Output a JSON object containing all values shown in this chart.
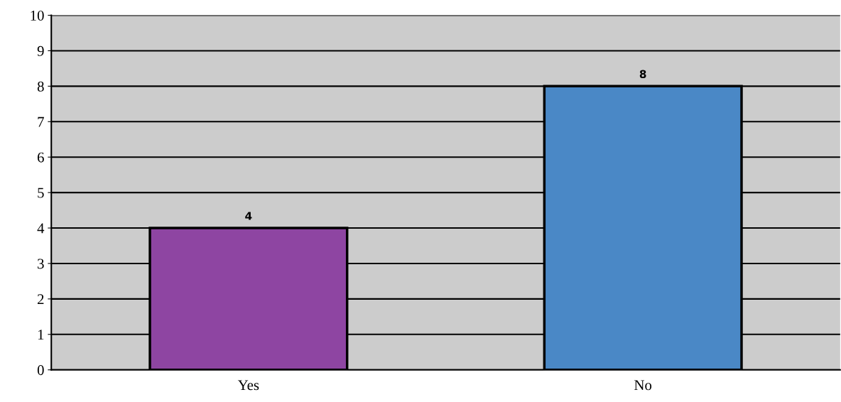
{
  "chart_data": {
    "type": "bar",
    "categories": [
      "Yes",
      "No"
    ],
    "colors": [
      "#8e45a2",
      "#4a88c6"
    ],
    "values": [
      4,
      8
    ],
    "ylim": [
      0,
      10
    ],
    "yticks": [
      0,
      1,
      2,
      3,
      4,
      5,
      6,
      7,
      8,
      9,
      10
    ],
    "grid": "y",
    "data_labels": true
  }
}
